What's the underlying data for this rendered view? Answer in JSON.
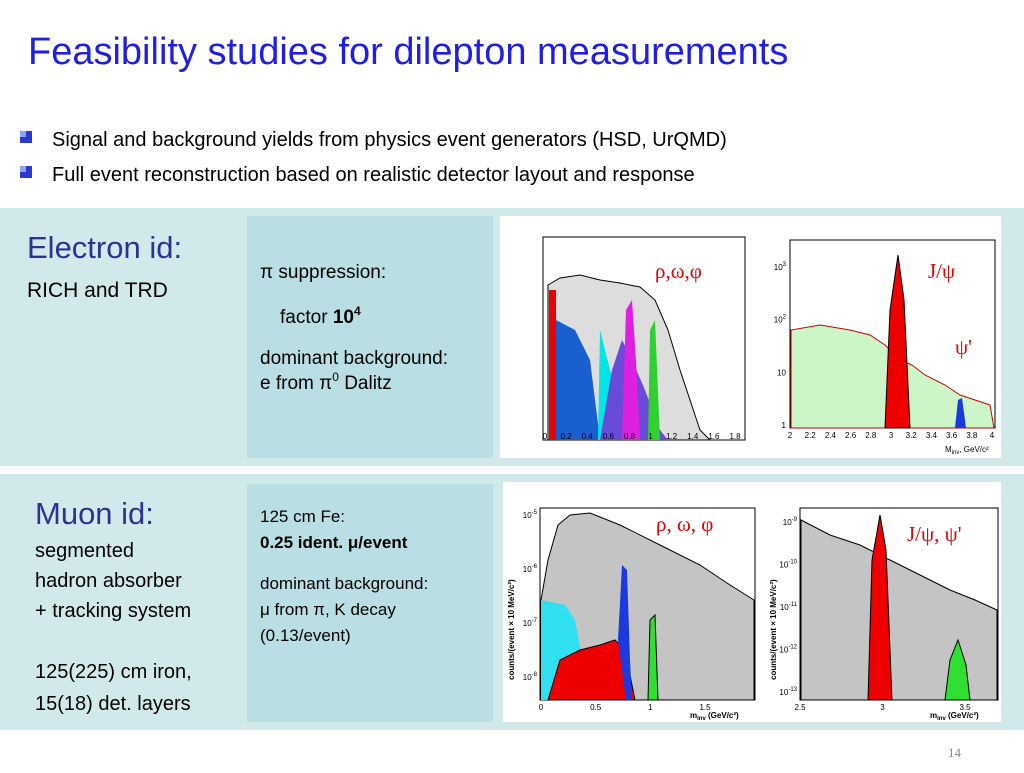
{
  "title": "Feasibility studies for dilepton measurements",
  "bullets": [
    "Signal and background yields from physics event generators (HSD, UrQMD)",
    "Full event reconstruction based on realistic detector layout and response"
  ],
  "electron": {
    "heading": "Electron id:",
    "subheading": "RICH and TRD",
    "box": {
      "suppression": "π suppression:",
      "factor_text": "factor",
      "factor_base": "10",
      "factor_exp": "4",
      "background": "dominant background:",
      "source_text": "e from π",
      "source_exp": "0",
      "source_suffix": " Dalitz"
    },
    "plot_left": {
      "label": "ρ,ω,φ",
      "xticks": [
        "0",
        "0.2",
        "0.4",
        "0.6",
        "0.8",
        "1",
        "1.2",
        "1.4",
        "1.6",
        "1.8"
      ]
    },
    "plot_right": {
      "label": "J/ψ",
      "label2": "ψ'",
      "xticks": [
        "2",
        "2.2",
        "2.4",
        "2.6",
        "2.8",
        "3",
        "3.2",
        "3.4",
        "3.6",
        "3.8",
        "4"
      ],
      "yticks": [
        {
          "base": "10",
          "exp": "3"
        },
        {
          "base": "10",
          "exp": "2"
        },
        {
          "base": "10",
          "exp": ""
        },
        {
          "base": "1",
          "exp": ""
        }
      ],
      "xlabel": "M",
      "xlabel_sub": "inv",
      "xlabel_rest": ", GeV/c²"
    }
  },
  "muon": {
    "heading": "Muon id:",
    "lines": [
      "segmented",
      "hadron absorber",
      "+ tracking system",
      "125(225) cm iron,",
      "15(18) det. layers"
    ],
    "box": {
      "absorber": "125 cm Fe:",
      "ident": "0.25 ident. μ/event",
      "background": "dominant background:",
      "source": "μ from π, K decay",
      "rate": "(0.13/event)"
    },
    "plot_left": {
      "label": "ρ, ω, φ",
      "ylabel": "counts/(event × 10 MeV/c²)",
      "yticks": [
        {
          "base": "10",
          "exp": "-5"
        },
        {
          "base": "10",
          "exp": "-6"
        },
        {
          "base": "10",
          "exp": "-7"
        },
        {
          "base": "10",
          "exp": "-8"
        }
      ],
      "xticks": [
        "0",
        "0.5",
        "1",
        "1.5"
      ],
      "xlabel": "m",
      "xlabel_sub": "inv",
      "xlabel_rest": " (GeV/c²)"
    },
    "plot_right": {
      "label": "J/ψ, ψ'",
      "ylabel": "counts/(event × 10 MeV/c²)",
      "yticks": [
        {
          "base": "10",
          "exp": "-9"
        },
        {
          "base": "10",
          "exp": "-10"
        },
        {
          "base": "10",
          "exp": "-11"
        },
        {
          "base": "10",
          "exp": "-12"
        },
        {
          "base": "10",
          "exp": "-13"
        }
      ],
      "xticks": [
        "2.5",
        "3",
        "3.5"
      ],
      "xlabel": "m",
      "xlabel_sub": "inv",
      "xlabel_rest": " (GeV/c²)"
    }
  },
  "page_number": "14"
}
